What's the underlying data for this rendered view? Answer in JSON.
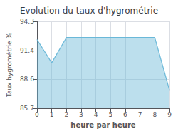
{
  "chart_data": {
    "type": "line",
    "title": "Evolution du taux d'hygrométrie",
    "xlabel": "heure par heure",
    "ylabel": "Taux hygrométrie %",
    "x": [
      0,
      1,
      2,
      3,
      4,
      5,
      6,
      7,
      8,
      9
    ],
    "values": [
      92.5,
      90.2,
      92.7,
      92.7,
      92.7,
      92.7,
      92.7,
      92.7,
      92.7,
      87.5
    ],
    "color": "#6ab8d8",
    "xlim": [
      0,
      9
    ],
    "ylim": [
      85.7,
      94.3
    ],
    "xticks": [
      0,
      1,
      2,
      3,
      4,
      5,
      6,
      7,
      8,
      9
    ],
    "yticks": [
      85.7,
      88.6,
      91.4,
      94.3
    ],
    "grid": true
  }
}
